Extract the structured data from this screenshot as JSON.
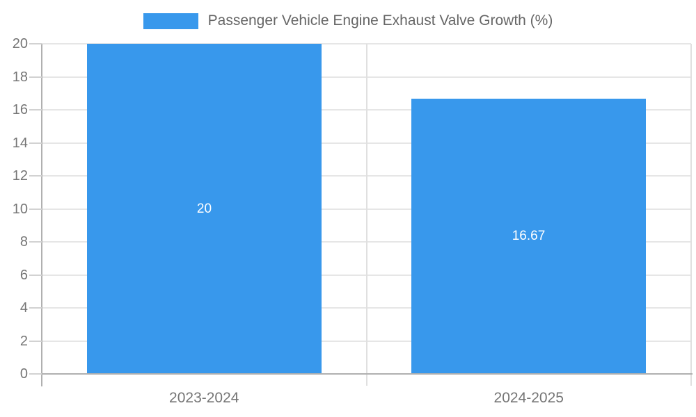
{
  "chart_data": {
    "type": "bar",
    "title": "Passenger Vehicle Engine Exhaust Valve Growth (%)",
    "categories": [
      "2023-2024",
      "2024-2025"
    ],
    "values": [
      20,
      16.67
    ],
    "value_labels": [
      "20",
      "16.67"
    ],
    "y_ticks": [
      0,
      2,
      4,
      6,
      8,
      10,
      12,
      14,
      16,
      18,
      20
    ],
    "ylim": [
      0,
      20
    ],
    "grid": true,
    "legend_position": "top-center",
    "xlabel": "",
    "ylabel": "",
    "colors": {
      "bar": "#3898ec",
      "value_label": "#ffffff",
      "axis_line": "#b0b0b0",
      "gridline": "#e6e6e6",
      "vertical_gridline": "#e0e0e0",
      "tick": "#d2d2d2",
      "axis_text": "#757575",
      "legend_text": "#666666",
      "background": "#ffffff"
    }
  }
}
